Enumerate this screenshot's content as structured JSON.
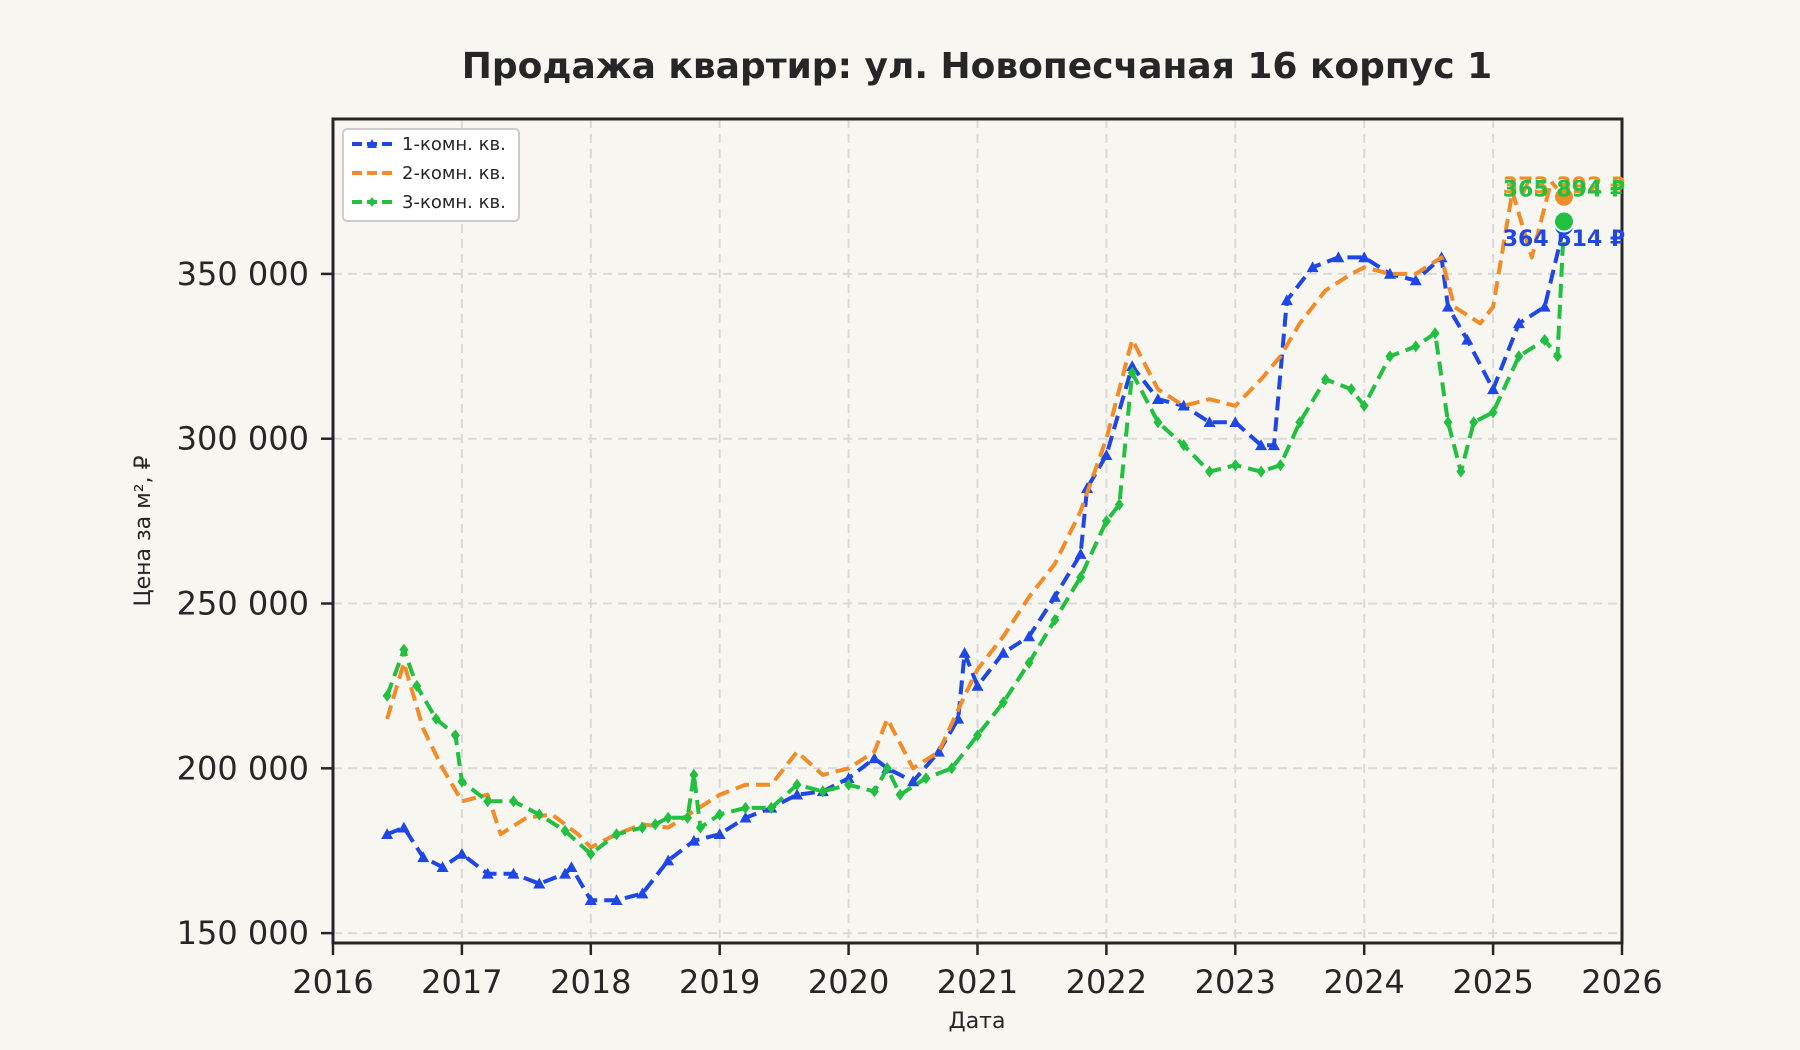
{
  "chart_data": {
    "type": "line",
    "title": "Продажа квартир: ул. Новопесчаная 16 корпус 1",
    "xlabel": "Дата",
    "ylabel": "Цена за м², ₽",
    "xlim": [
      2016,
      2026
    ],
    "ylim": [
      147000,
      397000
    ],
    "x_ticks": [
      2016,
      2017,
      2018,
      2019,
      2020,
      2021,
      2022,
      2023,
      2024,
      2025,
      2026
    ],
    "x_tick_labels": [
      "2016",
      "2017",
      "2018",
      "2019",
      "2020",
      "2021",
      "2022",
      "2023",
      "2024",
      "2025",
      "2026"
    ],
    "y_ticks": [
      150000,
      200000,
      250000,
      300000,
      350000
    ],
    "y_tick_labels": [
      "150 000",
      "200 000",
      "250 000",
      "300 000",
      "350 000"
    ],
    "grid": true,
    "legend_position": "top-left",
    "series": [
      {
        "name": "1-комн. кв.",
        "color": "#1f47e6",
        "marker": "triangle",
        "end_label": "364 514 ₽",
        "x": [
          2016.42,
          2016.55,
          2016.7,
          2016.85,
          2017.0,
          2017.2,
          2017.4,
          2017.6,
          2017.8,
          2017.85,
          2018.0,
          2018.2,
          2018.4,
          2018.6,
          2018.8,
          2019.0,
          2019.2,
          2019.4,
          2019.6,
          2019.8,
          2020.0,
          2020.2,
          2020.3,
          2020.5,
          2020.7,
          2020.85,
          2020.9,
          2021.0,
          2021.2,
          2021.4,
          2021.6,
          2021.8,
          2021.85,
          2022.0,
          2022.2,
          2022.4,
          2022.6,
          2022.8,
          2023.0,
          2023.2,
          2023.3,
          2023.4,
          2023.6,
          2023.8,
          2024.0,
          2024.2,
          2024.4,
          2024.6,
          2024.65,
          2024.8,
          2025.0,
          2025.2,
          2025.4,
          2025.55
        ],
        "y": [
          180000,
          182000,
          173000,
          170000,
          174000,
          168000,
          168000,
          165000,
          168000,
          170000,
          160000,
          160000,
          162000,
          172000,
          178000,
          180000,
          185000,
          188000,
          192000,
          193000,
          197000,
          203000,
          200000,
          196000,
          205000,
          215000,
          235000,
          225000,
          235000,
          240000,
          252000,
          265000,
          285000,
          295000,
          322000,
          312000,
          310000,
          305000,
          305000,
          298000,
          298000,
          342000,
          352000,
          355000,
          355000,
          350000,
          348000,
          355000,
          340000,
          330000,
          315000,
          335000,
          340000,
          364514
        ]
      },
      {
        "name": "2-комн. кв.",
        "color": "#f28c28",
        "marker": "none",
        "end_label": "373 392 ₽",
        "x": [
          2016.42,
          2016.55,
          2016.7,
          2016.85,
          2017.0,
          2017.2,
          2017.3,
          2017.5,
          2017.7,
          2017.9,
          2018.0,
          2018.2,
          2018.4,
          2018.6,
          2018.8,
          2019.0,
          2019.2,
          2019.4,
          2019.6,
          2019.8,
          2020.0,
          2020.2,
          2020.3,
          2020.5,
          2020.7,
          2020.9,
          2021.0,
          2021.2,
          2021.4,
          2021.6,
          2021.8,
          2022.0,
          2022.2,
          2022.4,
          2022.6,
          2022.8,
          2023.0,
          2023.2,
          2023.35,
          2023.5,
          2023.7,
          2023.9,
          2024.0,
          2024.2,
          2024.4,
          2024.6,
          2024.7,
          2024.9,
          2025.0,
          2025.15,
          2025.3,
          2025.45,
          2025.55
        ],
        "y": [
          215000,
          232000,
          212000,
          200000,
          190000,
          192000,
          180000,
          185000,
          186000,
          180000,
          176000,
          180000,
          183000,
          182000,
          187000,
          192000,
          195000,
          195000,
          205000,
          198000,
          200000,
          205000,
          215000,
          200000,
          205000,
          222000,
          230000,
          240000,
          252000,
          262000,
          278000,
          300000,
          330000,
          315000,
          310000,
          312000,
          310000,
          318000,
          325000,
          335000,
          345000,
          350000,
          352000,
          350000,
          350000,
          355000,
          340000,
          335000,
          340000,
          375000,
          355000,
          378000,
          373392
        ]
      },
      {
        "name": "3-комн. кв.",
        "color": "#22c040",
        "marker": "diamond",
        "end_label": "365 894 ₽",
        "x": [
          2016.42,
          2016.55,
          2016.65,
          2016.8,
          2016.95,
          2017.0,
          2017.2,
          2017.4,
          2017.6,
          2017.8,
          2018.0,
          2018.2,
          2018.4,
          2018.5,
          2018.6,
          2018.75,
          2018.8,
          2018.85,
          2019.0,
          2019.2,
          2019.4,
          2019.6,
          2019.8,
          2020.0,
          2020.2,
          2020.3,
          2020.4,
          2020.6,
          2020.8,
          2021.0,
          2021.2,
          2021.4,
          2021.6,
          2021.8,
          2022.0,
          2022.1,
          2022.2,
          2022.4,
          2022.6,
          2022.8,
          2023.0,
          2023.2,
          2023.35,
          2023.5,
          2023.7,
          2023.9,
          2024.0,
          2024.2,
          2024.4,
          2024.55,
          2024.65,
          2024.75,
          2024.85,
          2025.0,
          2025.2,
          2025.4,
          2025.5,
          2025.55
        ],
        "y": [
          222000,
          236000,
          225000,
          215000,
          210000,
          196000,
          190000,
          190000,
          186000,
          181000,
          174000,
          180000,
          182000,
          183000,
          185000,
          185000,
          198000,
          182000,
          186000,
          188000,
          188000,
          195000,
          193000,
          195000,
          193000,
          200000,
          192000,
          197000,
          200000,
          210000,
          220000,
          232000,
          245000,
          258000,
          275000,
          280000,
          320000,
          305000,
          298000,
          290000,
          292000,
          290000,
          292000,
          305000,
          318000,
          315000,
          310000,
          325000,
          328000,
          332000,
          305000,
          290000,
          305000,
          308000,
          325000,
          330000,
          325000,
          365894
        ]
      }
    ]
  }
}
